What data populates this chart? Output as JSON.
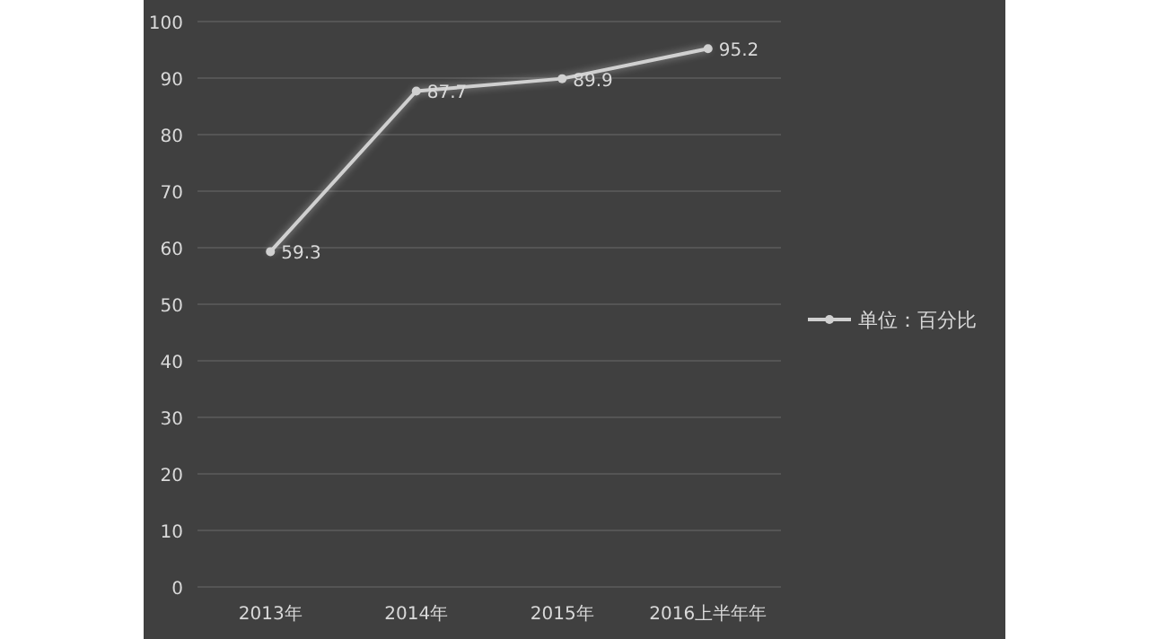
{
  "chart_data": {
    "type": "line",
    "categories": [
      "2013年",
      "2014年",
      "2015年",
      "2016上半年年"
    ],
    "series": [
      {
        "name": "单位：百分比",
        "color": "#d0d0d0",
        "values": [
          59.3,
          87.7,
          89.9,
          95.2
        ]
      }
    ],
    "ylim": [
      0,
      100
    ],
    "yticks": [
      0,
      10,
      20,
      30,
      40,
      50,
      60,
      70,
      80,
      90,
      100
    ],
    "grid": "y",
    "legend": "right",
    "marker": "circle",
    "line_style": "solid",
    "data_labels": true
  }
}
